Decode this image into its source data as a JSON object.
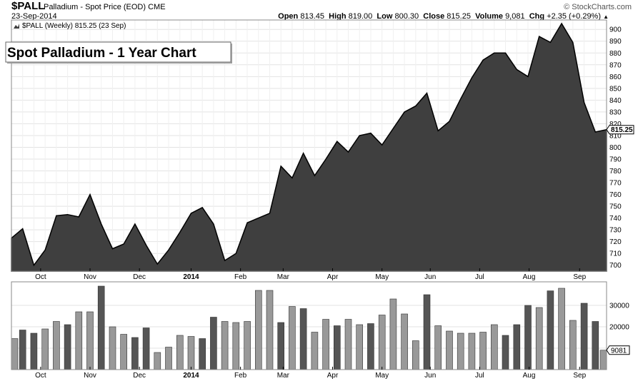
{
  "header": {
    "symbol": "$PALL",
    "description": "Palladium - Spot Price (EOD)",
    "exchange": "CME",
    "date": "23-Sep-2014",
    "brand": "© StockCharts.com",
    "open_label": "Open",
    "open": "813.45",
    "high_label": "High",
    "high": "819.00",
    "low_label": "Low",
    "low": "800.30",
    "close_label": "Close",
    "close": "815.25",
    "volume_label": "Volume",
    "volume": "9,081",
    "chg_label": "Chg",
    "chg": "+2.35 (+0.29%)"
  },
  "chart_data": [
    {
      "type": "area",
      "legend": "$PALL (Weekly) 815.25 (23 Sep)",
      "title": "Spot Palladium - 1 Year Chart",
      "last_value_label": "815.25",
      "ylim": [
        695,
        908
      ],
      "yticks": [
        700,
        710,
        720,
        730,
        740,
        750,
        760,
        770,
        780,
        790,
        800,
        810,
        820,
        830,
        840,
        850,
        860,
        870,
        880,
        890,
        900
      ],
      "color": "#3f3f3f",
      "x_start": 0,
      "values": [
        723,
        731,
        700,
        713,
        742,
        743,
        741,
        760,
        735,
        714,
        718,
        735,
        717,
        701,
        713,
        728,
        744,
        749,
        735,
        704,
        710,
        736,
        740,
        744,
        784,
        774,
        795,
        776,
        790,
        805,
        796,
        810,
        812,
        802,
        816,
        830,
        835,
        846,
        814,
        822,
        841,
        859,
        874,
        880,
        880,
        866,
        860,
        894,
        889,
        905,
        889,
        838,
        813,
        815
      ]
    },
    {
      "type": "bar",
      "title": "",
      "last_value_label": "9081",
      "ylim": [
        0,
        41000
      ],
      "yticks": [
        10000,
        20000,
        30000
      ],
      "ytick_labels": [
        "",
        "20000",
        "30000"
      ],
      "values": [
        14500,
        18500,
        17000,
        19000,
        22500,
        21000,
        27000,
        27000,
        39000,
        20000,
        16500,
        15000,
        19500,
        8000,
        10500,
        16000,
        15500,
        14500,
        24500,
        22500,
        22000,
        22500,
        37000,
        37000,
        22000,
        29500,
        28500,
        17500,
        23500,
        20500,
        23500,
        21000,
        21500,
        25500,
        33000,
        26000,
        13500,
        35000,
        20500,
        18000,
        17000,
        17000,
        17500,
        21000,
        16000,
        21000,
        30000,
        29000,
        36800,
        38000,
        23000,
        31000,
        22500,
        9081
      ],
      "shades": [
        "l",
        "d",
        "d",
        "l",
        "l",
        "d",
        "l",
        "l",
        "d",
        "l",
        "l",
        "d",
        "d",
        "l",
        "l",
        "l",
        "l",
        "d",
        "d",
        "l",
        "l",
        "l",
        "l",
        "l",
        "d",
        "l",
        "d",
        "l",
        "l",
        "d",
        "l",
        "l",
        "d",
        "l",
        "l",
        "l",
        "l",
        "d",
        "l",
        "l",
        "l",
        "l",
        "l",
        "l",
        "d",
        "d",
        "d",
        "l",
        "d",
        "l",
        "l",
        "d",
        "d",
        "l"
      ]
    }
  ],
  "months": [
    {
      "label": "Oct",
      "bar": 2.6
    },
    {
      "label": "Nov",
      "bar": 7.0
    },
    {
      "label": "Dec",
      "bar": 11.4
    },
    {
      "label": "2014",
      "bar": 16.0,
      "bold": true
    },
    {
      "label": "Feb",
      "bar": 20.4
    },
    {
      "label": "Mar",
      "bar": 24.2
    },
    {
      "label": "Apr",
      "bar": 28.6
    },
    {
      "label": "May",
      "bar": 33.0
    },
    {
      "label": "Jun",
      "bar": 37.3
    },
    {
      "label": "Jul",
      "bar": 41.7
    },
    {
      "label": "Aug",
      "bar": 46.1
    },
    {
      "label": "Sep",
      "bar": 50.6
    }
  ],
  "colors": {
    "area_fill": "#3f3f3f",
    "bar_dark": "#555555",
    "bar_light": "#999999",
    "grid": "#e3e3e3",
    "panel_border": "#888888"
  }
}
